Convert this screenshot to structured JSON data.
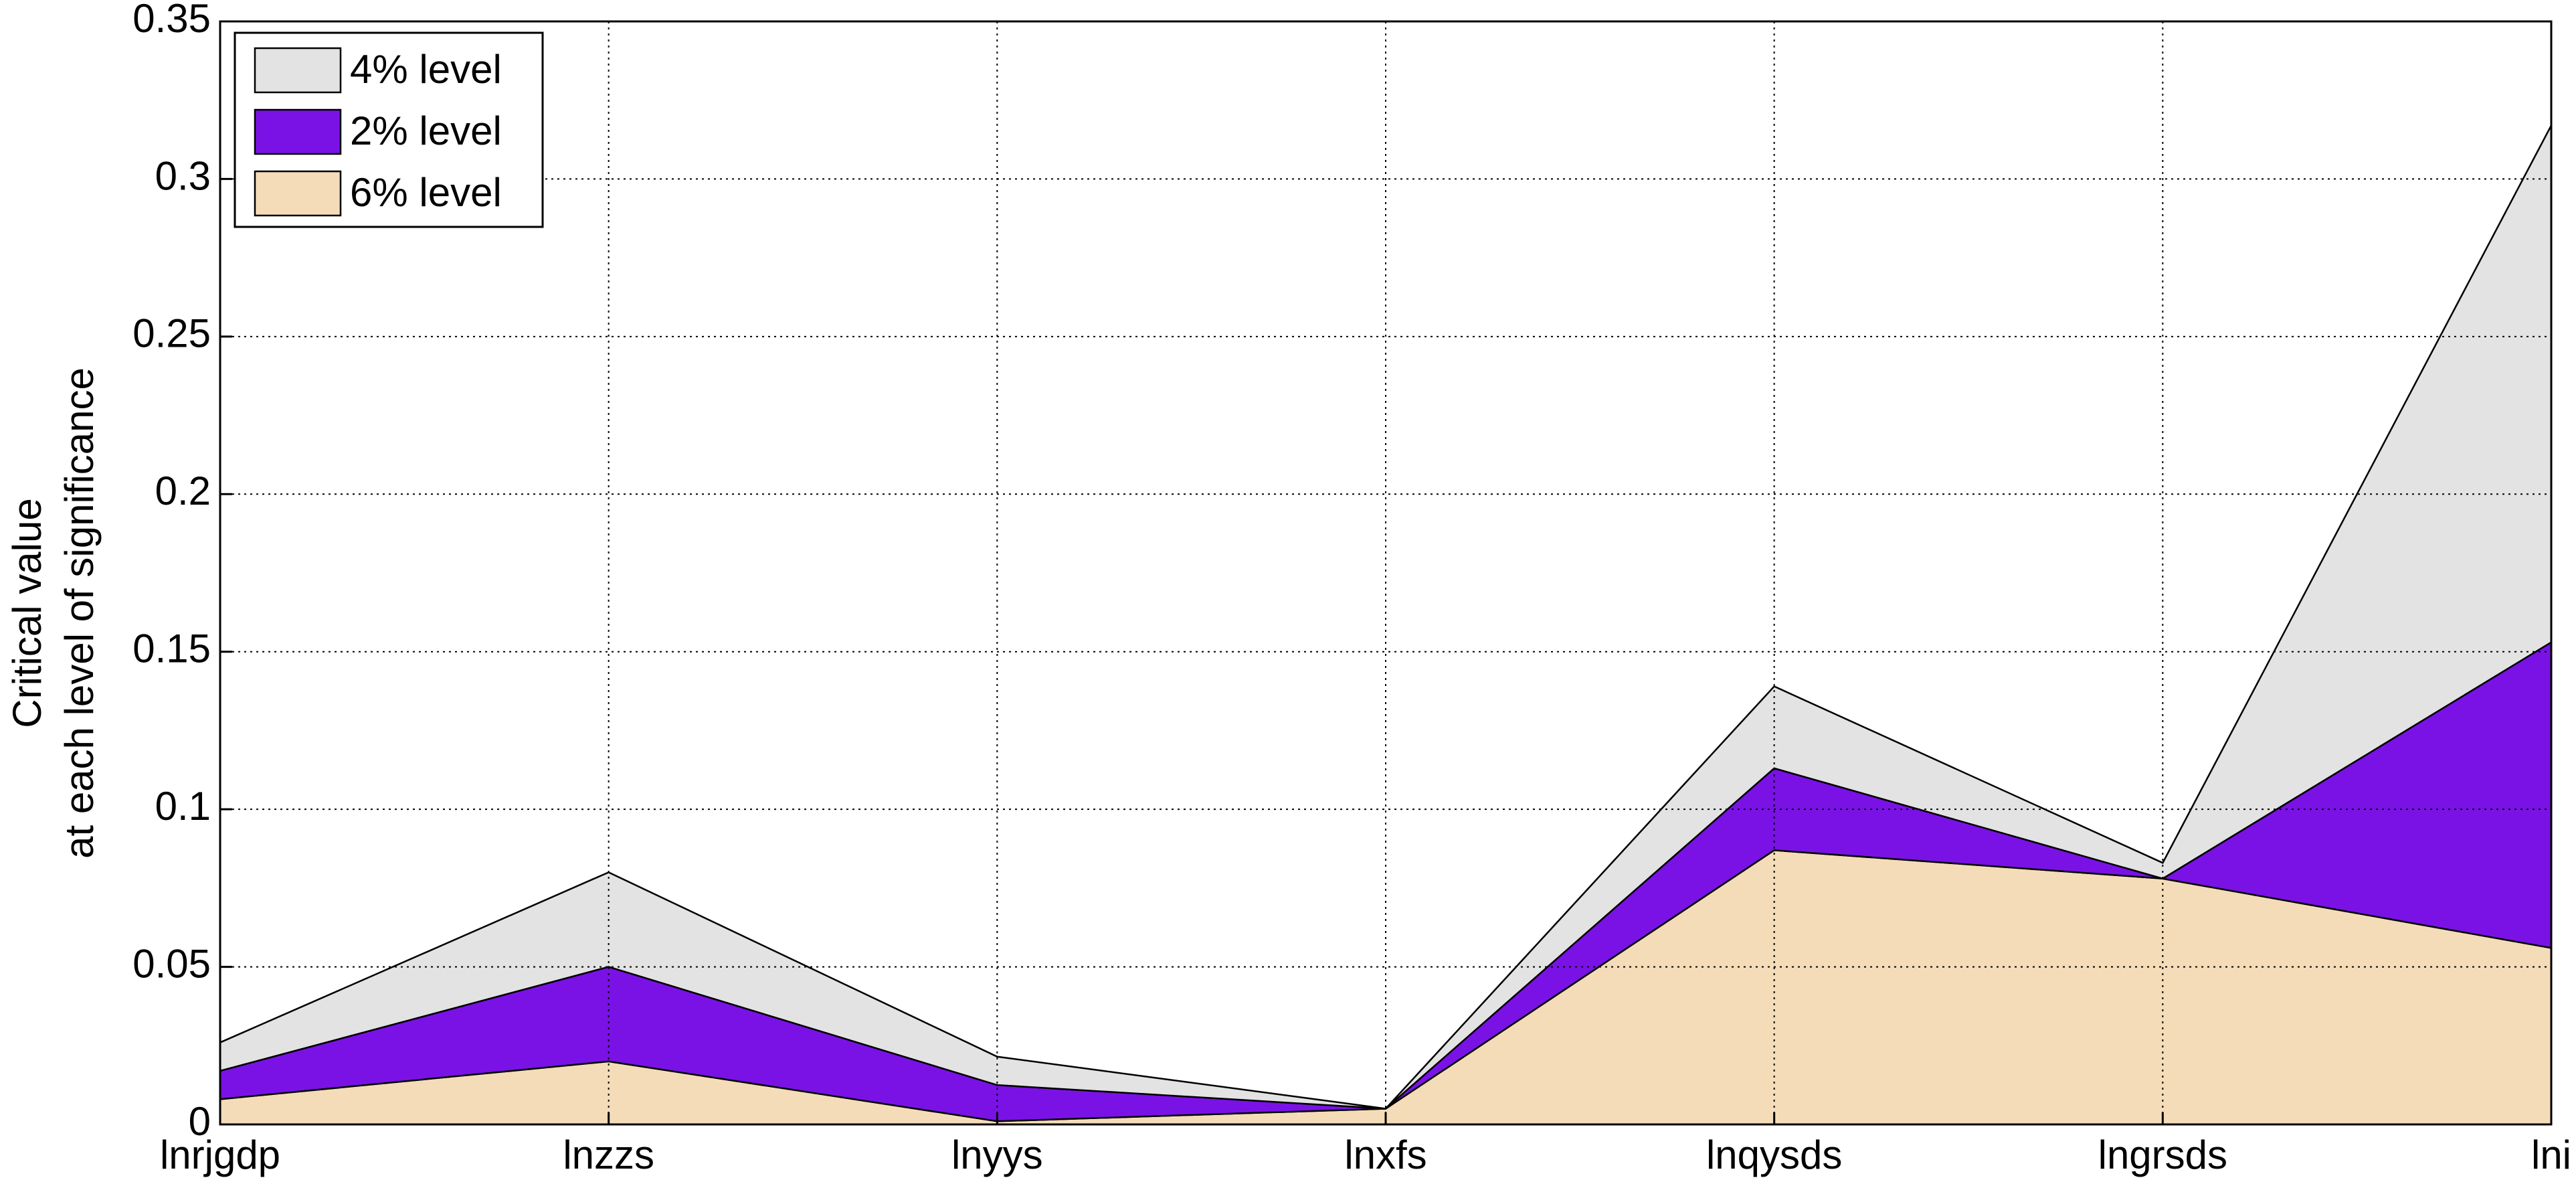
{
  "chart_data": {
    "type": "stacked_area",
    "y_label_lines": [
      "Critical value",
      "at each level of significance"
    ],
    "categories": [
      "lnrjgdp",
      "lnzzs",
      "lnyys",
      "lnxfs",
      "lnqysds",
      "lngrsds",
      "lni"
    ],
    "series": [
      {
        "name": "4% level",
        "color": "#e3e3e3",
        "values": [
          0.009,
          0.03,
          0.009,
          0,
          0.026,
          0.005,
          0.164
        ]
      },
      {
        "name": "2% level",
        "color": "#7a12e6",
        "values": [
          0.009,
          0.03,
          0.0115,
          0,
          0.026,
          0,
          0.097
        ]
      },
      {
        "name": "6% level",
        "color": "#f4dcb8",
        "values": [
          0.008,
          0.02,
          0.001,
          0.005,
          0.087,
          0.078,
          0.056
        ]
      }
    ],
    "stack_from_last": true,
    "ylim": [
      0,
      0.35
    ],
    "yticks": [
      0,
      0.05,
      0.1,
      0.15,
      0.2,
      0.25,
      0.3,
      0.35
    ],
    "grid": true,
    "legend": "upper-left"
  }
}
